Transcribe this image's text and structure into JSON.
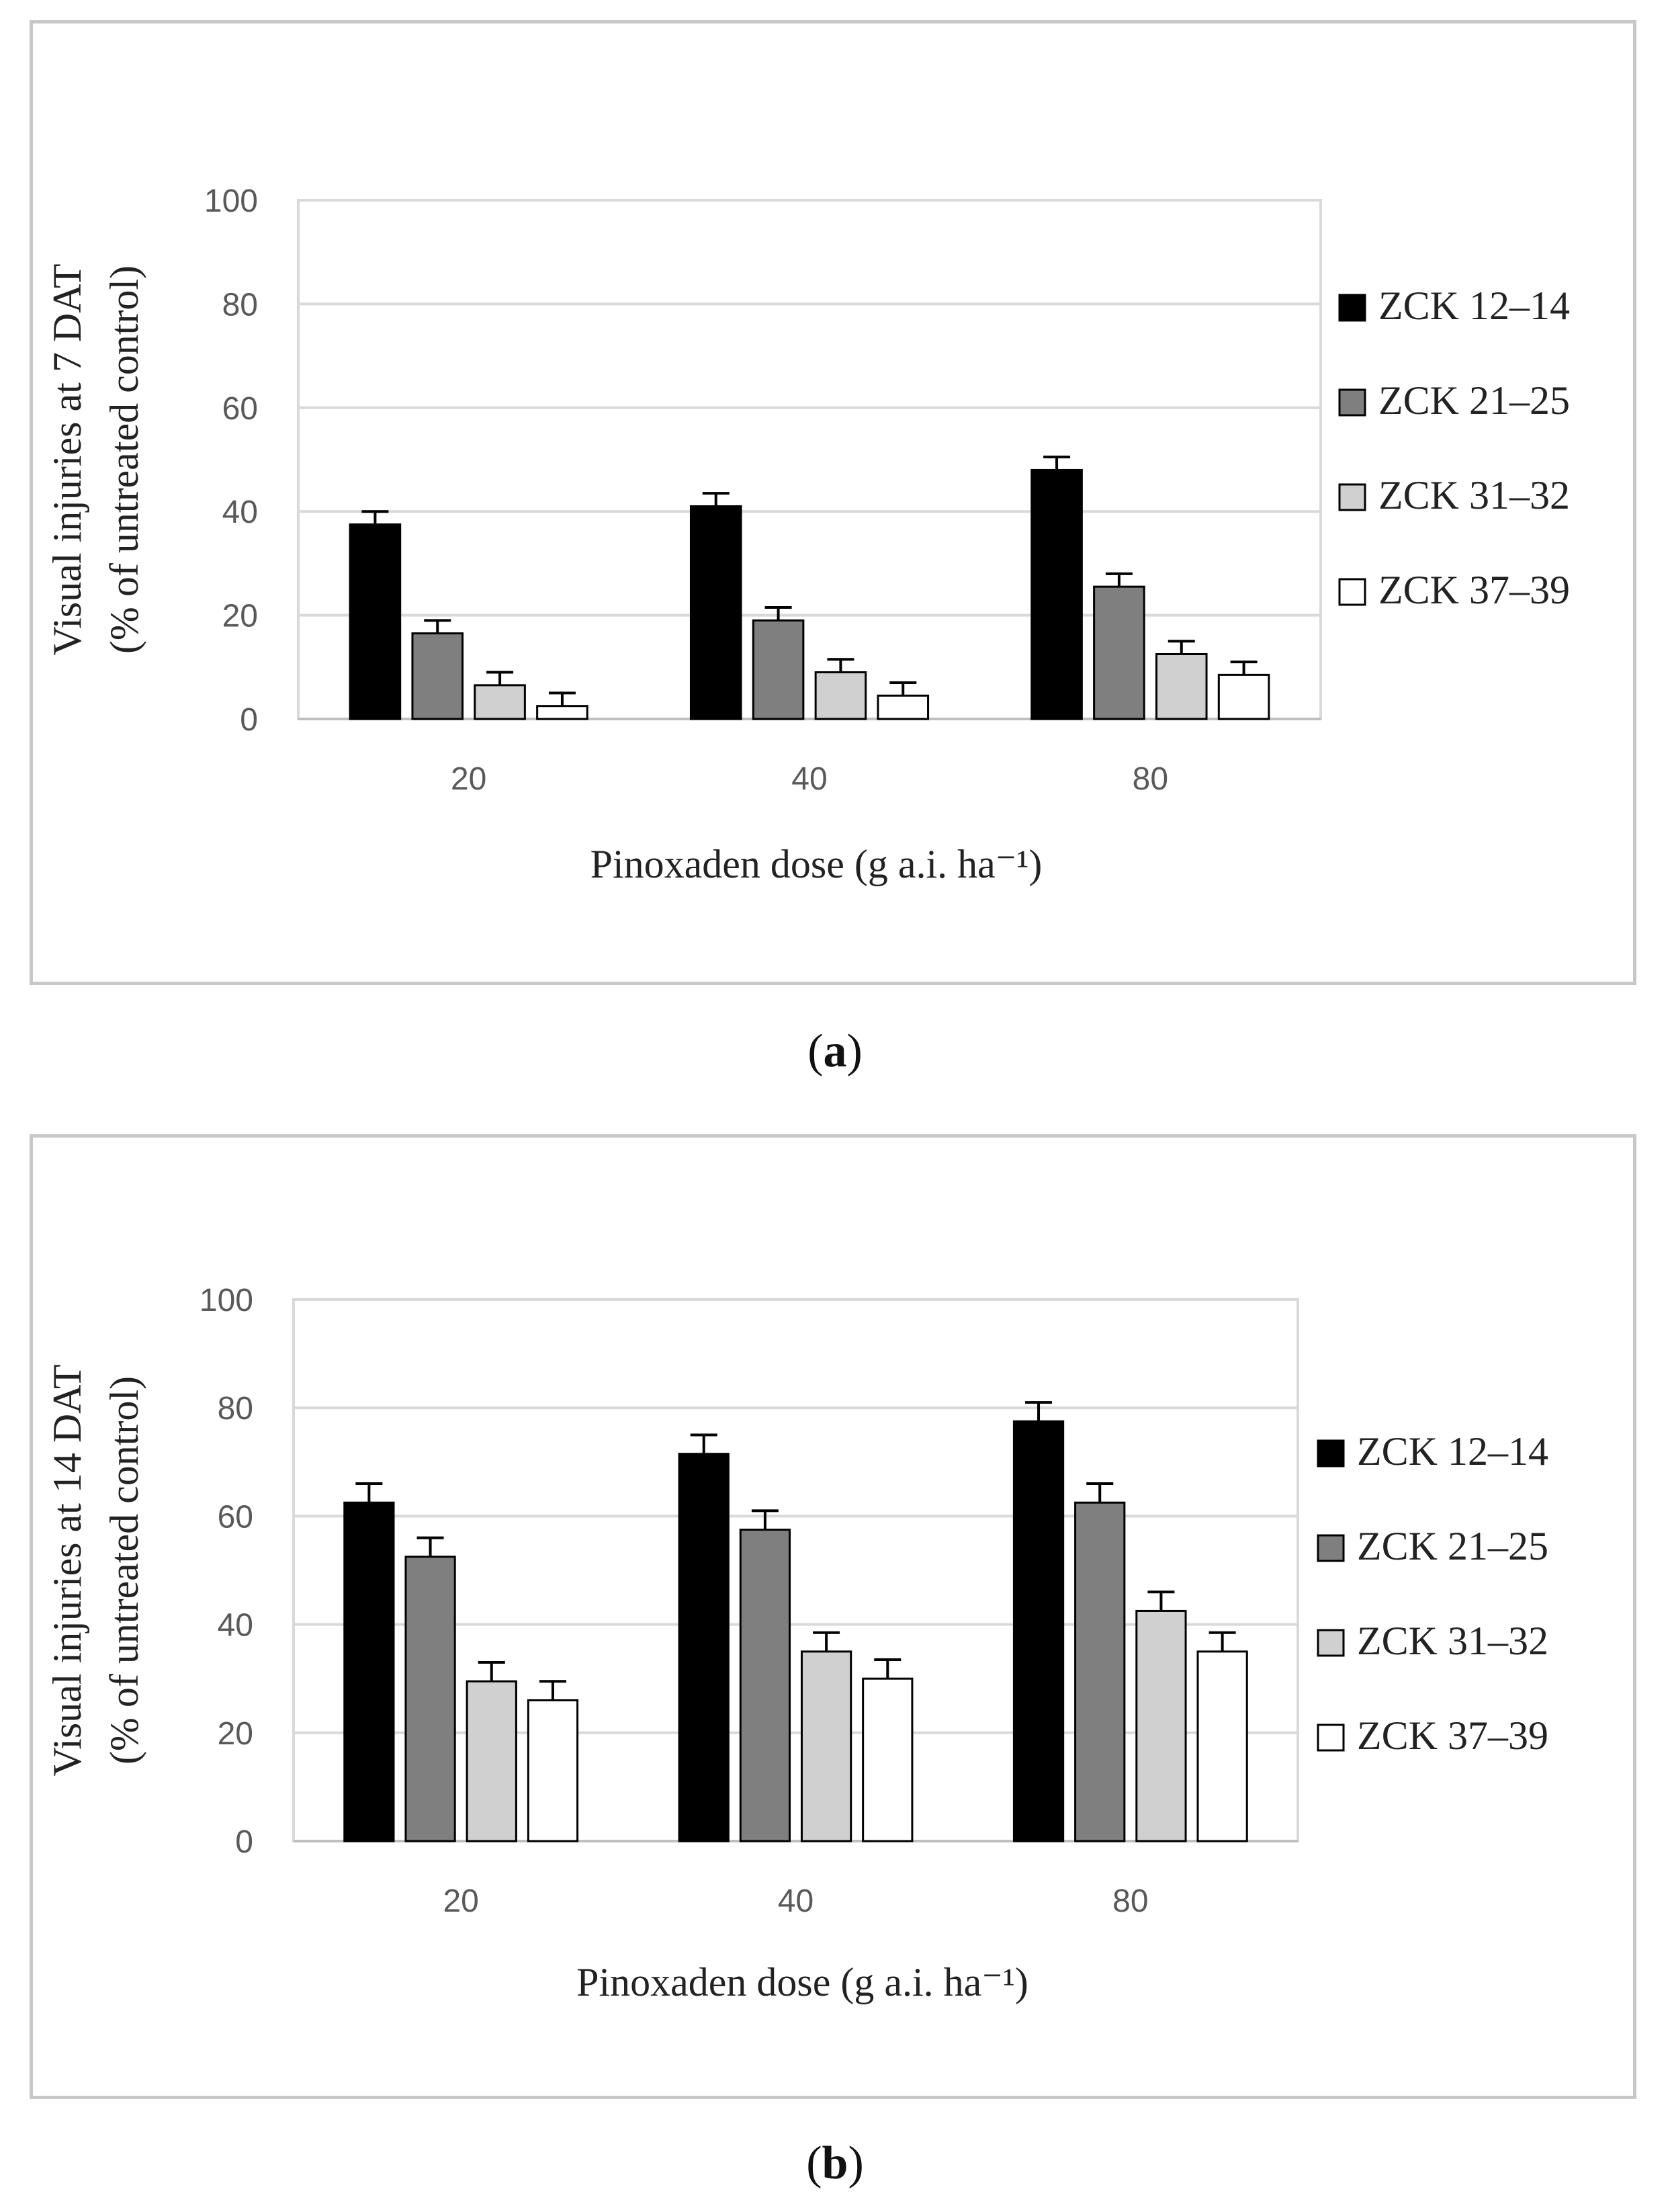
{
  "chart_data": [
    {
      "type": "bar",
      "panel_label": "a",
      "title": "",
      "xlabel": "Pinoxaden dose (g a.i. ha⁻¹)",
      "ylabel_line1": "Visual injuries at 7 DAT",
      "ylabel_line2": "(% of untreated control)",
      "ylim": [
        0,
        100
      ],
      "yticks": [
        "0",
        "20",
        "40",
        "60",
        "80",
        "100"
      ],
      "grid": true,
      "legend_position": "right",
      "categories": [
        "20",
        "40",
        "80"
      ],
      "series": [
        {
          "name": "ZCK 12–14",
          "color": "#000000",
          "values": [
            37.5,
            41,
            48
          ],
          "errors": [
            2.5,
            2.5,
            2.5
          ]
        },
        {
          "name": "ZCK 21–25",
          "color": "#7f7f7f",
          "values": [
            16.5,
            19,
            25.5
          ],
          "errors": [
            2.5,
            2.5,
            2.5
          ]
        },
        {
          "name": "ZCK 31–32",
          "color": "#d0d0d0",
          "values": [
            6.5,
            9,
            12.5
          ],
          "errors": [
            2.5,
            2.5,
            2.5
          ]
        },
        {
          "name": "ZCK 37–39",
          "color": "#ffffff",
          "values": [
            2.5,
            4.5,
            8.5
          ],
          "errors": [
            2.5,
            2.5,
            2.5
          ]
        }
      ]
    },
    {
      "type": "bar",
      "panel_label": "b",
      "title": "",
      "xlabel": "Pinoxaden dose (g a.i. ha⁻¹)",
      "ylabel_line1": "Visual injuries at 14 DAT",
      "ylabel_line2": "(% of untreated control)",
      "ylim": [
        0,
        100
      ],
      "yticks": [
        "0",
        "20",
        "40",
        "60",
        "80",
        "100"
      ],
      "grid": true,
      "legend_position": "right",
      "categories": [
        "20",
        "40",
        "80"
      ],
      "series": [
        {
          "name": "ZCK 12–14",
          "color": "#000000",
          "values": [
            62.5,
            71.5,
            77.5
          ],
          "errors": [
            3.5,
            3.5,
            3.5
          ]
        },
        {
          "name": "ZCK 21–25",
          "color": "#7f7f7f",
          "values": [
            52.5,
            57.5,
            62.5
          ],
          "errors": [
            3.5,
            3.5,
            3.5
          ]
        },
        {
          "name": "ZCK 31–32",
          "color": "#d0d0d0",
          "values": [
            29.5,
            35,
            42.5
          ],
          "errors": [
            3.5,
            3.5,
            3.5
          ]
        },
        {
          "name": "ZCK 37–39",
          "color": "#ffffff",
          "values": [
            26,
            30,
            35
          ],
          "errors": [
            3.5,
            3.5,
            3.5
          ]
        }
      ]
    }
  ]
}
